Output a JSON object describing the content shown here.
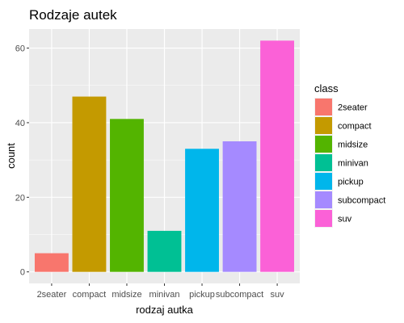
{
  "chart_data": {
    "type": "bar",
    "title": "Rodzaje autek",
    "xlabel": "rodzaj autka",
    "ylabel": "count",
    "categories": [
      "2seater",
      "compact",
      "midsize",
      "minivan",
      "pickup",
      "subcompact",
      "suv"
    ],
    "values": [
      5,
      47,
      41,
      11,
      33,
      35,
      62
    ],
    "colors": [
      "#F8766D",
      "#C49A00",
      "#53B400",
      "#00C094",
      "#00B6EB",
      "#A58AFF",
      "#FB61D7"
    ],
    "ylim": [
      -3.1,
      65.1
    ],
    "yticks": [
      0,
      20,
      40,
      60
    ],
    "grid": true,
    "legend": {
      "title": "class",
      "position": "right",
      "entries": [
        "2seater",
        "compact",
        "midsize",
        "minivan",
        "pickup",
        "subcompact",
        "suv"
      ]
    }
  }
}
